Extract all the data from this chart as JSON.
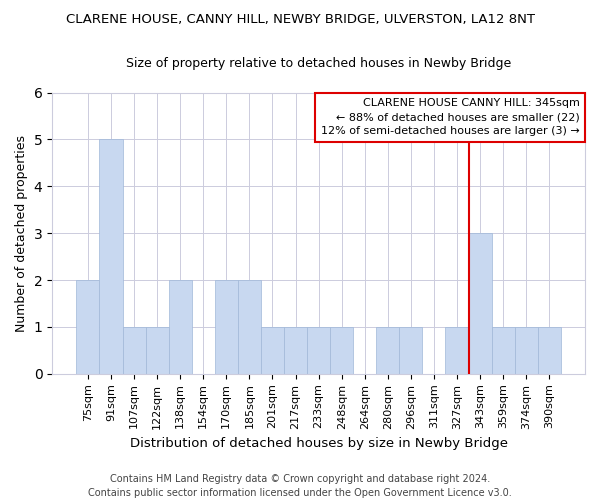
{
  "title": "CLARENE HOUSE, CANNY HILL, NEWBY BRIDGE, ULVERSTON, LA12 8NT",
  "subtitle": "Size of property relative to detached houses in Newby Bridge",
  "xlabel": "Distribution of detached houses by size in Newby Bridge",
  "ylabel": "Number of detached properties",
  "footer": "Contains HM Land Registry data © Crown copyright and database right 2024.\nContains public sector information licensed under the Open Government Licence v3.0.",
  "categories": [
    "75sqm",
    "91sqm",
    "107sqm",
    "122sqm",
    "138sqm",
    "154sqm",
    "170sqm",
    "185sqm",
    "201sqm",
    "217sqm",
    "233sqm",
    "248sqm",
    "264sqm",
    "280sqm",
    "296sqm",
    "311sqm",
    "327sqm",
    "343sqm",
    "359sqm",
    "374sqm",
    "390sqm"
  ],
  "values": [
    2,
    5,
    1,
    1,
    2,
    0,
    2,
    2,
    1,
    1,
    1,
    1,
    0,
    1,
    1,
    0,
    1,
    3,
    1,
    1,
    1
  ],
  "bar_color": "#c8d8f0",
  "bar_edgecolor": "#a0b8d8",
  "highlight_index": 17,
  "highlight_color": "#dd0000",
  "ylim": [
    0,
    6
  ],
  "yticks": [
    0,
    1,
    2,
    3,
    4,
    5,
    6
  ],
  "legend_title": "CLARENE HOUSE CANNY HILL: 345sqm",
  "legend_line1": "← 88% of detached houses are smaller (22)",
  "legend_line2": "12% of semi-detached houses are larger (3) →",
  "background_color": "#ffffff",
  "grid_color": "#ccccdd",
  "title_fontsize": 9.5,
  "subtitle_fontsize": 9,
  "tick_fontsize": 8,
  "ylabel_fontsize": 9,
  "xlabel_fontsize": 9.5,
  "legend_fontsize": 8,
  "footer_fontsize": 7
}
